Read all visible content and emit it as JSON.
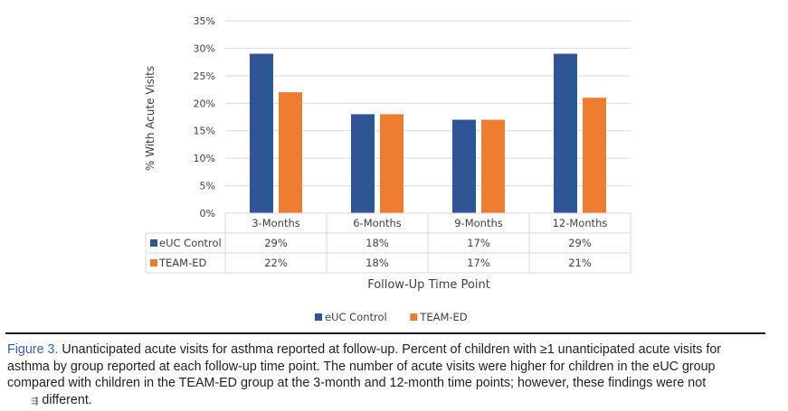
{
  "chart_data": {
    "type": "bar",
    "title": "",
    "xlabel": "Follow-Up Time Point",
    "ylabel": "% With Acute Visits",
    "ylim": [
      0,
      35
    ],
    "yticks": [
      "0%",
      "5%",
      "10%",
      "15%",
      "20%",
      "25%",
      "30%",
      "35%"
    ],
    "ytick_values": [
      0,
      5,
      10,
      15,
      20,
      25,
      30,
      35
    ],
    "categories": [
      "3-Months",
      "6-Months",
      "9-Months",
      "12-Months"
    ],
    "series": [
      {
        "name": "eUC Control",
        "values": [
          29,
          18,
          17,
          29
        ],
        "labels": [
          "29%",
          "18%",
          "17%",
          "29%"
        ],
        "color": "#2f5597"
      },
      {
        "name": "TEAM-ED",
        "values": [
          22,
          18,
          17,
          21
        ],
        "labels": [
          "22%",
          "18%",
          "17%",
          "21%"
        ],
        "color": "#ed7d31"
      }
    ],
    "grid": true,
    "legend": "bottom",
    "data_table": true
  },
  "colors": {
    "grid": "#d9d9d9",
    "axis_text": "#404040",
    "caption_accent": "#2d63b5"
  },
  "caption": {
    "label": "Figure 3.",
    "line1": "Unanticipated acute visits for asthma reported at follow-up. Percent of children with ≥1 unanticipated acute visits for",
    "line2": "asthma by group reported at each follow-up time point. The number of acute visits were higher for children in the eUC group",
    "line3": "compared with children in the TEAM-ED group at the 3-month and 12-month time points; however, these findings were not",
    "line4": "different."
  }
}
